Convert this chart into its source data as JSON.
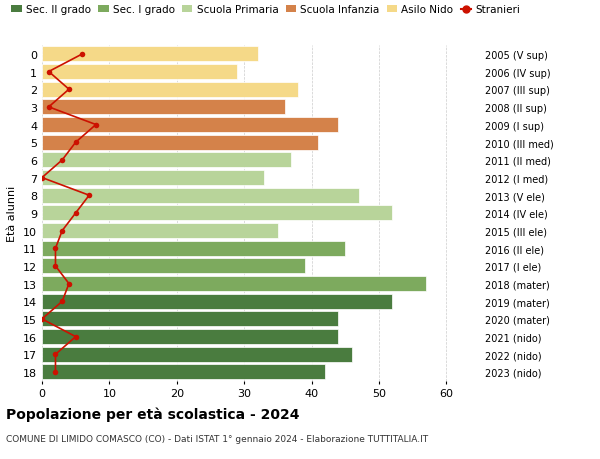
{
  "ages": [
    18,
    17,
    16,
    15,
    14,
    13,
    12,
    11,
    10,
    9,
    8,
    7,
    6,
    5,
    4,
    3,
    2,
    1,
    0
  ],
  "bar_values": [
    42,
    46,
    44,
    44,
    52,
    57,
    39,
    45,
    35,
    52,
    47,
    33,
    37,
    41,
    44,
    36,
    38,
    29,
    32
  ],
  "stranieri_values": [
    2,
    2,
    5,
    0,
    3,
    4,
    2,
    2,
    3,
    5,
    7,
    0,
    3,
    5,
    8,
    1,
    4,
    1,
    6
  ],
  "bar_colors": [
    "#4a7c3f",
    "#4a7c3f",
    "#4a7c3f",
    "#4a7c3f",
    "#4a7c3f",
    "#7daa5e",
    "#7daa5e",
    "#7daa5e",
    "#b8d49a",
    "#b8d49a",
    "#b8d49a",
    "#b8d49a",
    "#b8d49a",
    "#d4824a",
    "#d4824a",
    "#d4824a",
    "#f5d988",
    "#f5d988",
    "#f5d988"
  ],
  "right_labels": [
    "2005 (V sup)",
    "2006 (IV sup)",
    "2007 (III sup)",
    "2008 (II sup)",
    "2009 (I sup)",
    "2010 (III med)",
    "2011 (II med)",
    "2012 (I med)",
    "2013 (V ele)",
    "2014 (IV ele)",
    "2015 (III ele)",
    "2016 (II ele)",
    "2017 (I ele)",
    "2018 (mater)",
    "2019 (mater)",
    "2020 (mater)",
    "2021 (nido)",
    "2022 (nido)",
    "2023 (nido)"
  ],
  "legend_labels": [
    "Sec. II grado",
    "Sec. I grado",
    "Scuola Primaria",
    "Scuola Infanzia",
    "Asilo Nido",
    "Stranieri"
  ],
  "legend_colors": [
    "#4a7c3f",
    "#7daa5e",
    "#b8d49a",
    "#d4824a",
    "#f5d988",
    "#cc1100"
  ],
  "ylabel_left": "Età alunni",
  "title": "Popolazione per età scolastica - 2024",
  "subtitle": "COMUNE DI LIMIDO COMASCO (CO) - Dati ISTAT 1° gennaio 2024 - Elaborazione TUTTITALIA.IT",
  "xlim": [
    0,
    65
  ],
  "xticks": [
    0,
    10,
    20,
    30,
    40,
    50,
    60
  ],
  "stranieri_color": "#cc1100"
}
